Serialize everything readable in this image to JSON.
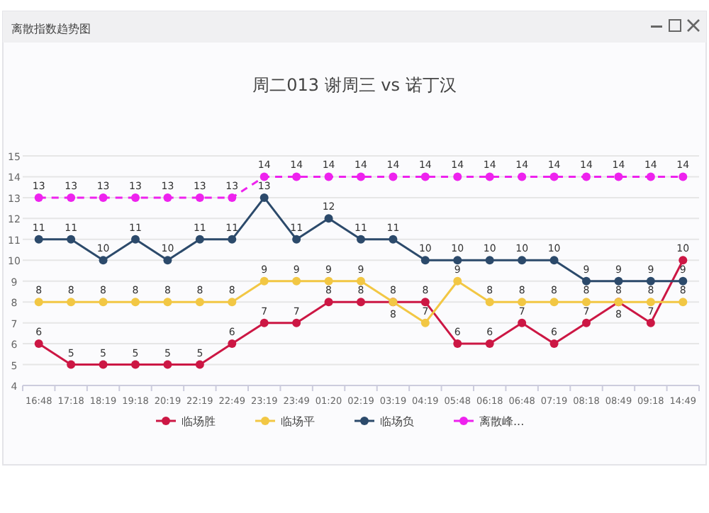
{
  "chart_data": {
    "type": "line",
    "title": "周二013 谢周三 vs 诺丁汉",
    "subtitle": "离散指数趋势图",
    "categories": [
      "16:48",
      "17:18",
      "18:19",
      "19:18",
      "20:19",
      "22:19",
      "22:49",
      "23:19",
      "23:49",
      "01:20",
      "02:19",
      "03:19",
      "04:19",
      "05:48",
      "06:18",
      "06:48",
      "07:19",
      "08:18",
      "08:49",
      "09:18",
      "14:49"
    ],
    "series": [
      {
        "name": "临场胜",
        "color": "#cc1744",
        "values": [
          6,
          5,
          5,
          5,
          5,
          5,
          6,
          7,
          7,
          8,
          8,
          8,
          8,
          6,
          6,
          7,
          6,
          7,
          8,
          7,
          10
        ]
      },
      {
        "name": "临场平",
        "color": "#f2c744",
        "values": [
          8,
          8,
          8,
          8,
          8,
          8,
          8,
          9,
          9,
          9,
          9,
          8,
          7,
          9,
          8,
          8,
          8,
          8,
          8,
          8,
          8
        ]
      },
      {
        "name": "临场负",
        "color": "#2c4a6b",
        "values": [
          11,
          11,
          10,
          11,
          10,
          11,
          11,
          13,
          11,
          12,
          11,
          11,
          10,
          10,
          10,
          10,
          10,
          9,
          9,
          9,
          9
        ]
      },
      {
        "name": "离散峰...",
        "color": "#ee22ee",
        "line_style": "dashed",
        "values": [
          13,
          13,
          13,
          13,
          13,
          13,
          13,
          14,
          14,
          14,
          14,
          14,
          14,
          14,
          14,
          14,
          14,
          14,
          14,
          14,
          14
        ]
      }
    ],
    "ylim": [
      4,
      15
    ],
    "yticks": [
      4,
      5,
      6,
      7,
      8,
      9,
      10,
      11,
      12,
      13,
      14,
      15
    ],
    "grid": "y",
    "legend": "bottom",
    "marker": "circle",
    "data_labels": true
  }
}
